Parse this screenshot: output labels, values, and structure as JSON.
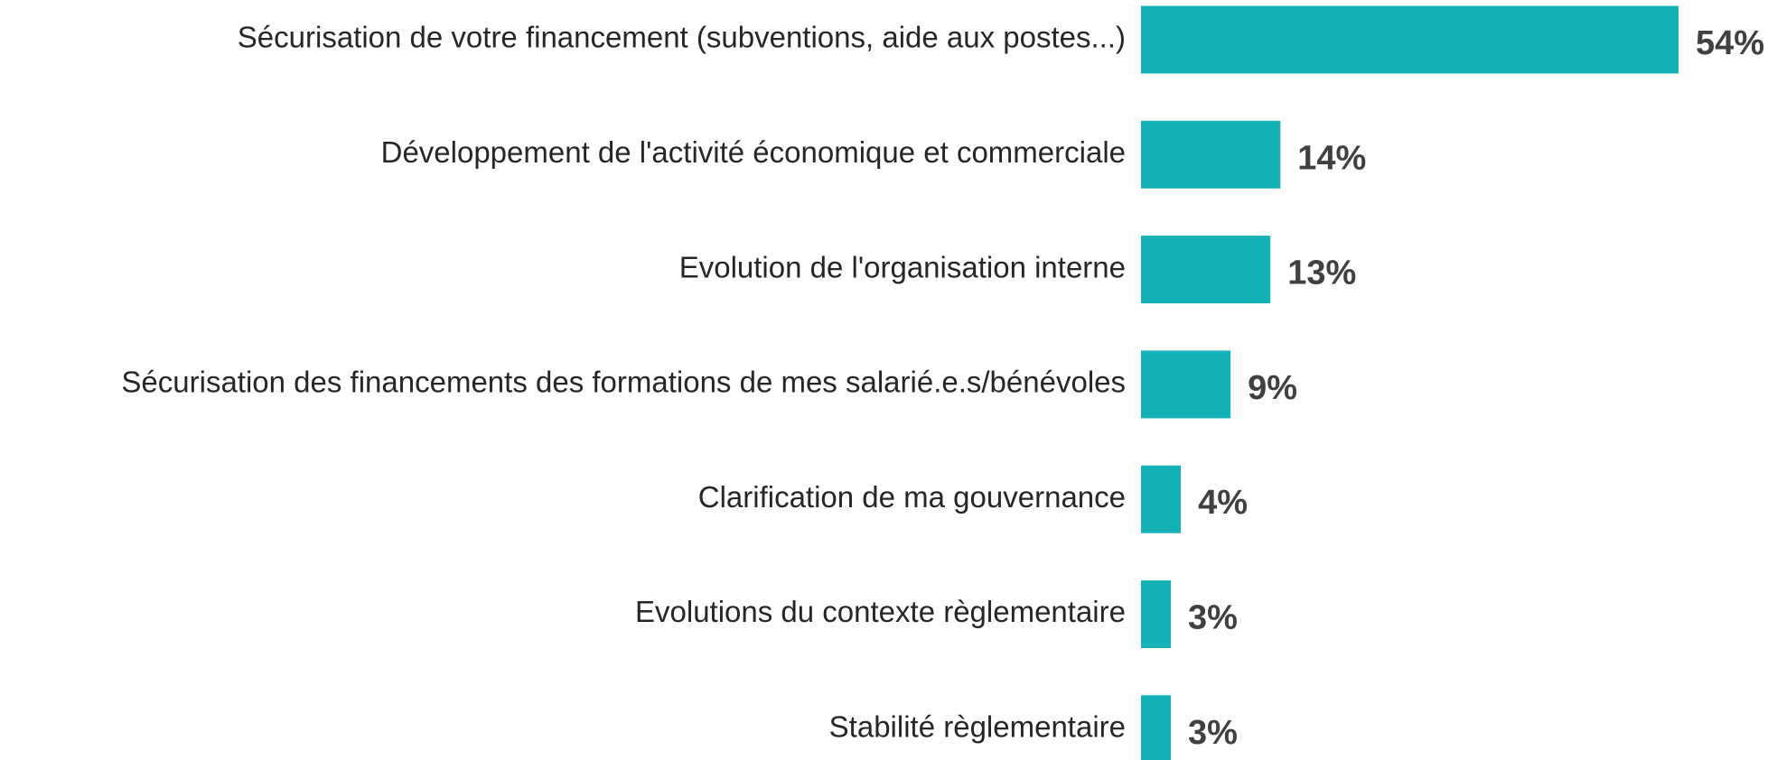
{
  "chart_data": {
    "type": "bar",
    "orientation": "horizontal",
    "categories": [
      "Sécurisation de votre financement (subventions, aide aux postes...)",
      "Développement de l'activité économique et commerciale",
      "Evolution de l'organisation interne",
      "Sécurisation des financements des formations de mes salarié.e.s/bénévoles",
      "Clarification de ma gouvernance",
      "Evolutions du contexte règlementaire",
      "Stabilité règlementaire"
    ],
    "values": [
      54,
      14,
      13,
      9,
      4,
      3,
      3
    ],
    "value_labels": [
      "54%",
      "14%",
      "13%",
      "9%",
      "4%",
      "3%",
      "3%"
    ],
    "color": "#14b1b7"
  }
}
